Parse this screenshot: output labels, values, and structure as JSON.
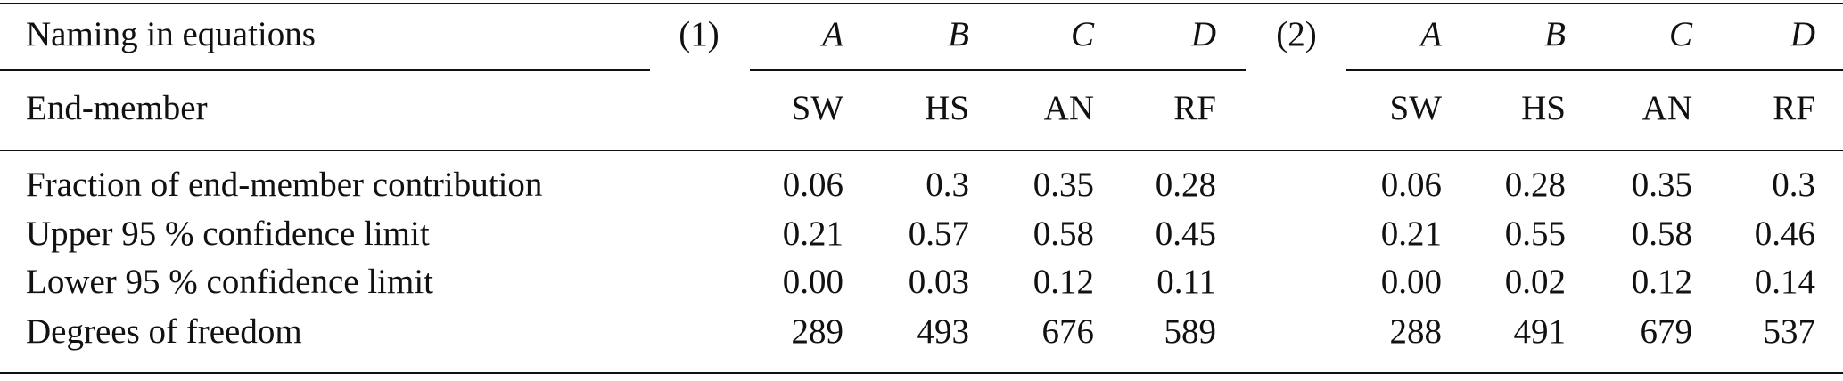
{
  "table": {
    "naming_label": "Naming in equations",
    "end_member_label": "End-member",
    "groups": [
      {
        "label": "(1)",
        "symbols": [
          "A",
          "B",
          "C",
          "D"
        ],
        "end_members": [
          "SW",
          "HS",
          "AN",
          "RF"
        ]
      },
      {
        "label": "(2)",
        "symbols": [
          "A",
          "B",
          "C",
          "D"
        ],
        "end_members": [
          "SW",
          "HS",
          "AN",
          "RF"
        ]
      }
    ],
    "rows": [
      {
        "label": "Fraction of end-member contribution",
        "values": [
          [
            "0.06",
            "0.3",
            "0.35",
            "0.28"
          ],
          [
            "0.06",
            "0.28",
            "0.35",
            "0.3"
          ]
        ]
      },
      {
        "label": "Upper 95 % confidence limit",
        "values": [
          [
            "0.21",
            "0.57",
            "0.58",
            "0.45"
          ],
          [
            "0.21",
            "0.55",
            "0.58",
            "0.46"
          ]
        ]
      },
      {
        "label": "Lower 95 % confidence limit",
        "values": [
          [
            "0.00",
            "0.03",
            "0.12",
            "0.11"
          ],
          [
            "0.00",
            "0.02",
            "0.12",
            "0.14"
          ]
        ]
      },
      {
        "label": "Degrees of freedom",
        "values": [
          [
            "289",
            "493",
            "676",
            "589"
          ],
          [
            "288",
            "491",
            "679",
            "537"
          ]
        ]
      }
    ]
  }
}
